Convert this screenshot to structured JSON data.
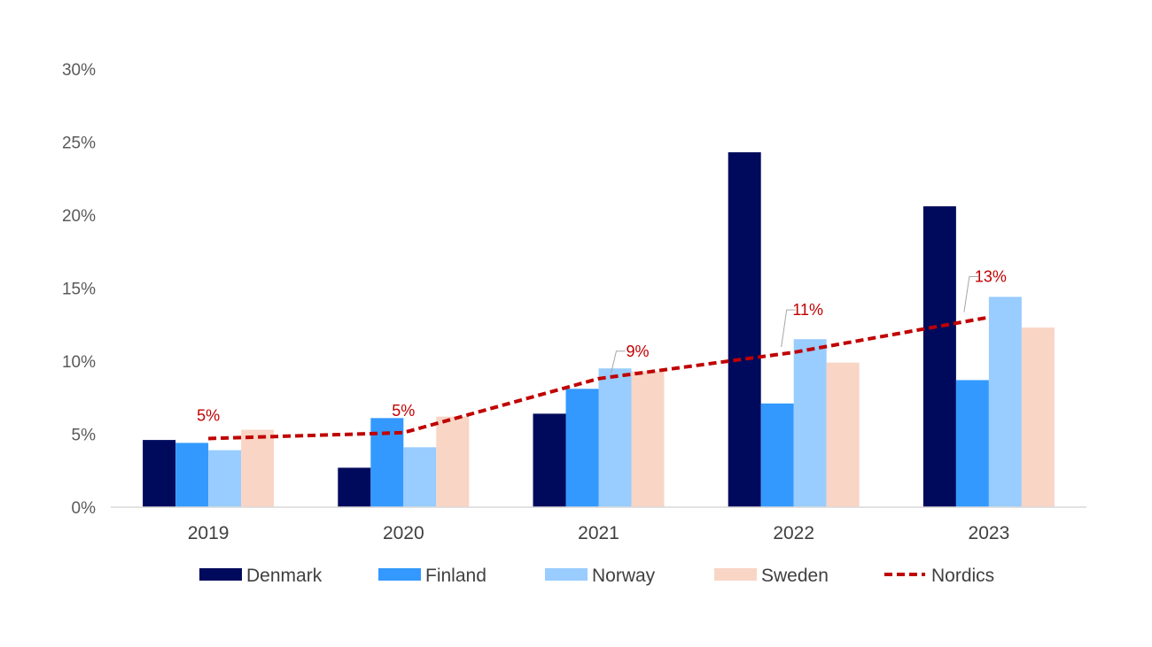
{
  "chart_data": {
    "type": "bar",
    "categories": [
      "2019",
      "2020",
      "2021",
      "2022",
      "2023"
    ],
    "ylim": [
      0,
      30
    ],
    "y_ticks": [
      "0%",
      "5%",
      "10%",
      "15%",
      "20%",
      "25%",
      "30%"
    ],
    "y_tick_values": [
      0,
      5,
      10,
      15,
      20,
      25,
      30
    ],
    "grid": false,
    "legend_position": "bottom",
    "series": [
      {
        "name": "Denmark",
        "type": "bar",
        "color": "#000a5c",
        "values": [
          4.6,
          2.7,
          6.4,
          24.3,
          20.6
        ]
      },
      {
        "name": "Finland",
        "type": "bar",
        "color": "#3399ff",
        "values": [
          4.4,
          6.1,
          8.1,
          7.1,
          8.7
        ]
      },
      {
        "name": "Norway",
        "type": "bar",
        "color": "#99ccff",
        "values": [
          3.9,
          4.1,
          9.5,
          11.5,
          14.4
        ]
      },
      {
        "name": "Sweden",
        "type": "bar",
        "color": "#f9d5c5",
        "values": [
          5.3,
          6.2,
          9.3,
          9.9,
          12.3
        ]
      },
      {
        "name": "Nordics",
        "type": "line",
        "style": "dashed",
        "color": "#c00000",
        "values": [
          4.7,
          5.1,
          8.8,
          10.6,
          13.0
        ],
        "data_labels": [
          "5%",
          "5%",
          "9%",
          "11%",
          "13%"
        ]
      }
    ]
  }
}
